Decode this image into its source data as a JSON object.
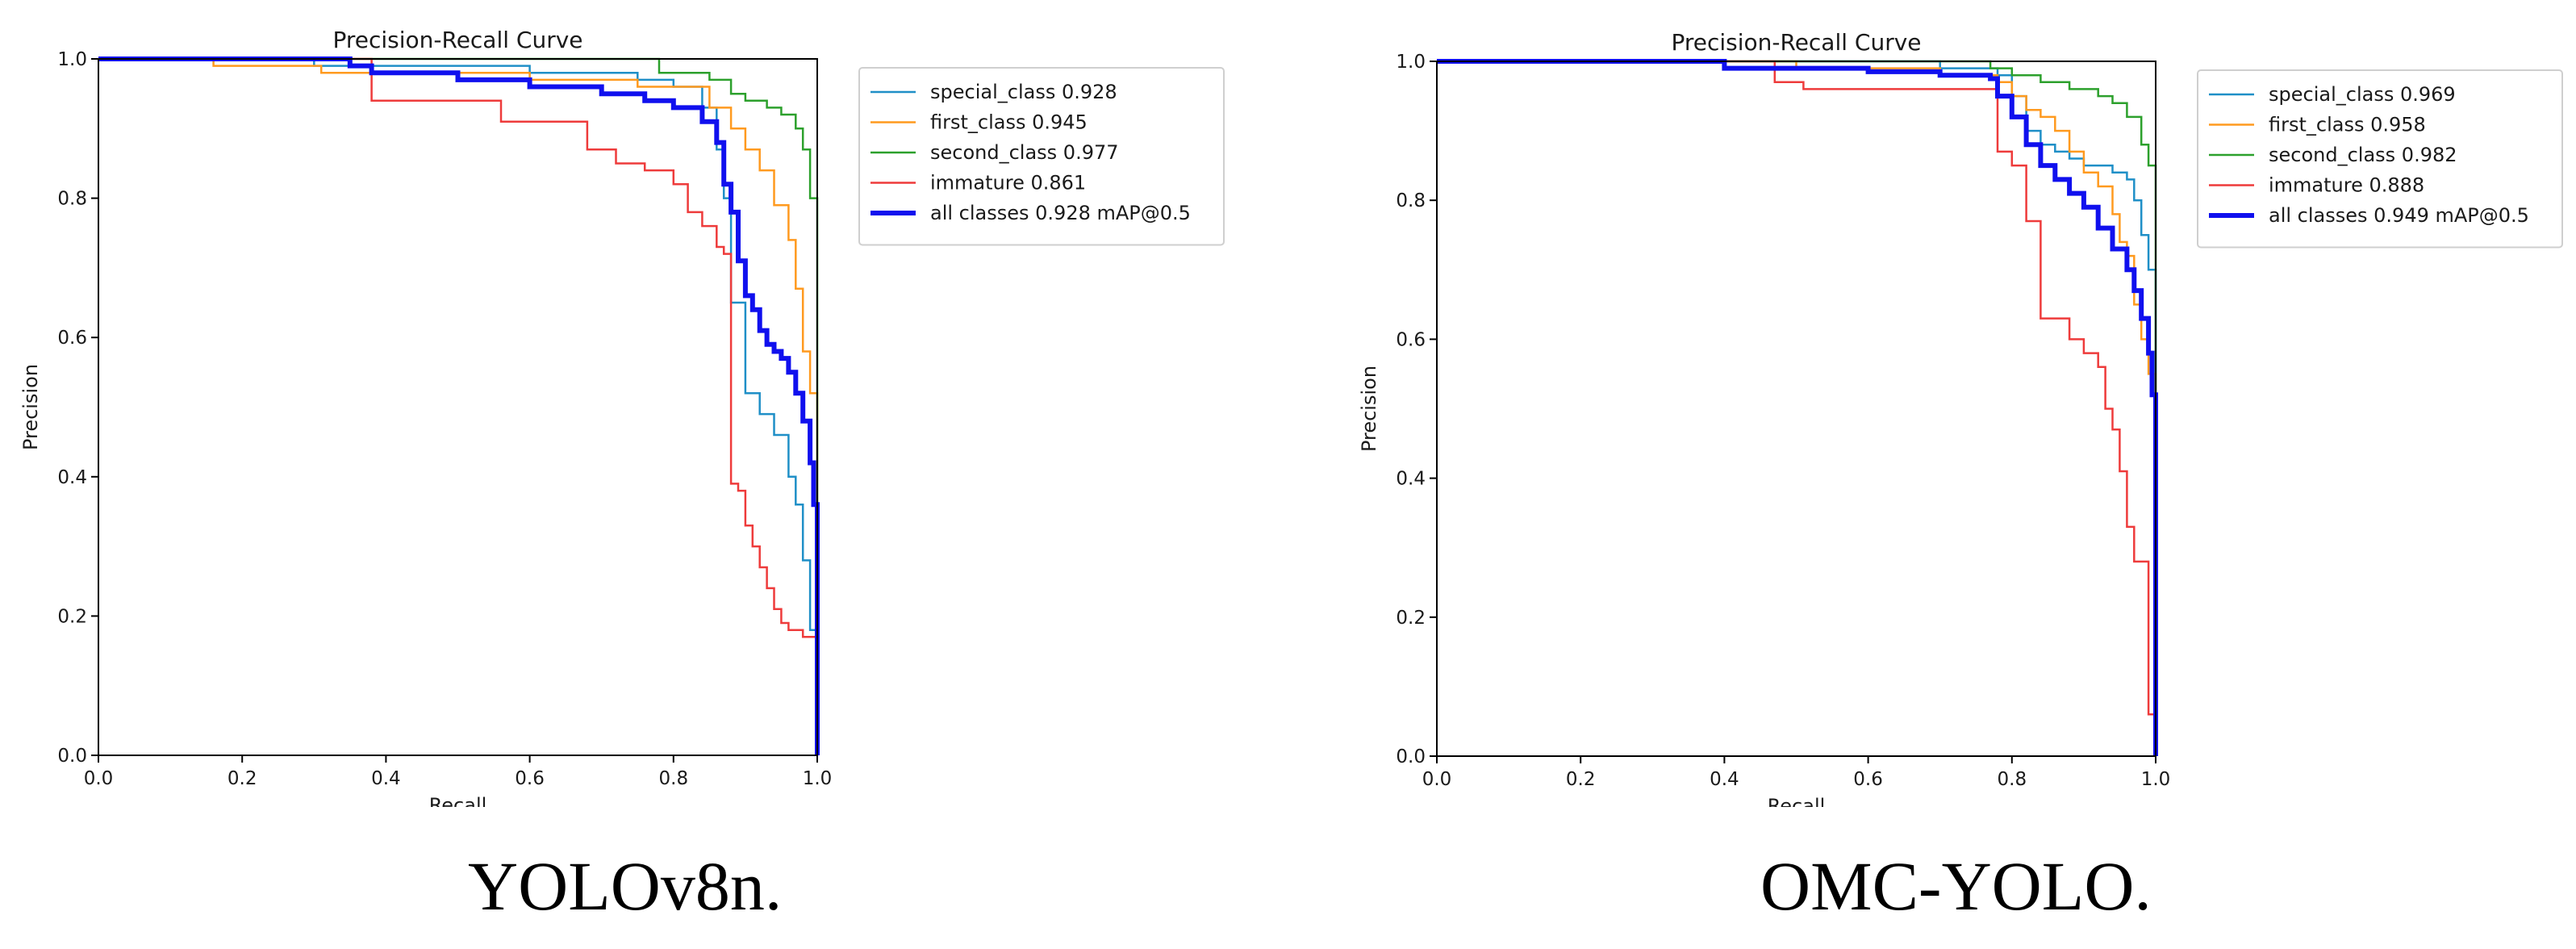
{
  "captions": {
    "left": "YOLOv8n.",
    "right": "OMC-YOLO."
  },
  "chart_data": [
    {
      "type": "line",
      "title": "Precision-Recall Curve",
      "xlabel": "Recall",
      "ylabel": "Precision",
      "xlim": [
        0,
        1
      ],
      "ylim": [
        0,
        1
      ],
      "xticks": [
        "0.0",
        "0.2",
        "0.4",
        "0.6",
        "0.8",
        "1.0"
      ],
      "yticks": [
        "0.0",
        "0.2",
        "0.4",
        "0.6",
        "0.8",
        "1.0"
      ],
      "grid": false,
      "legend_position": "outside-right",
      "series": [
        {
          "name": "special_class 0.928",
          "color": "#1f8fc7",
          "width": 2.5,
          "x": [
            0,
            0.3,
            0.6,
            0.75,
            0.8,
            0.84,
            0.86,
            0.87,
            0.88,
            0.88,
            0.9,
            0.9,
            0.92,
            0.94,
            0.96,
            0.97,
            0.98,
            0.99,
            1.0,
            1.0
          ],
          "y": [
            1.0,
            0.99,
            0.98,
            0.97,
            0.96,
            0.93,
            0.87,
            0.8,
            0.72,
            0.65,
            0.6,
            0.52,
            0.49,
            0.46,
            0.4,
            0.36,
            0.28,
            0.18,
            0.1,
            0.0
          ]
        },
        {
          "name": "first_class 0.945",
          "color": "#ff9a1f",
          "width": 2.5,
          "x": [
            0,
            0.15,
            0.16,
            0.3,
            0.31,
            0.6,
            0.75,
            0.85,
            0.88,
            0.9,
            0.92,
            0.94,
            0.96,
            0.97,
            0.98,
            0.99,
            1.0,
            1.0
          ],
          "y": [
            1.0,
            1.0,
            0.99,
            0.99,
            0.98,
            0.97,
            0.96,
            0.93,
            0.9,
            0.87,
            0.84,
            0.79,
            0.74,
            0.67,
            0.58,
            0.52,
            0.4,
            0.0
          ]
        },
        {
          "name": "second_class 0.977",
          "color": "#2ca02c",
          "width": 2.5,
          "x": [
            0,
            0.6,
            0.77,
            0.78,
            0.85,
            0.88,
            0.9,
            0.93,
            0.95,
            0.97,
            0.98,
            0.99,
            1.0,
            1.0
          ],
          "y": [
            1.0,
            1.0,
            1.0,
            0.98,
            0.97,
            0.95,
            0.94,
            0.93,
            0.92,
            0.9,
            0.87,
            0.8,
            0.62,
            0.0
          ]
        },
        {
          "name": "immature 0.861",
          "color": "#ee3b3b",
          "width": 2.5,
          "x": [
            0,
            0.37,
            0.38,
            0.55,
            0.56,
            0.66,
            0.68,
            0.72,
            0.76,
            0.8,
            0.82,
            0.84,
            0.86,
            0.87,
            0.88,
            0.88,
            0.89,
            0.9,
            0.91,
            0.92,
            0.93,
            0.94,
            0.95,
            0.96,
            0.97,
            0.98,
            0.99,
            1.0,
            1.0
          ],
          "y": [
            1.0,
            1.0,
            0.94,
            0.94,
            0.91,
            0.91,
            0.87,
            0.85,
            0.84,
            0.82,
            0.78,
            0.76,
            0.73,
            0.72,
            0.55,
            0.39,
            0.38,
            0.33,
            0.3,
            0.27,
            0.24,
            0.21,
            0.19,
            0.18,
            0.18,
            0.17,
            0.17,
            0.1,
            0.0
          ]
        },
        {
          "name": "all classes 0.928 mAP@0.5",
          "color": "#1010ee",
          "width": 6,
          "x": [
            0,
            0.35,
            0.38,
            0.5,
            0.6,
            0.7,
            0.76,
            0.8,
            0.84,
            0.86,
            0.87,
            0.88,
            0.89,
            0.9,
            0.91,
            0.92,
            0.93,
            0.94,
            0.95,
            0.96,
            0.97,
            0.98,
            0.99,
            0.995,
            1.0,
            1.0
          ],
          "y": [
            1.0,
            0.99,
            0.98,
            0.97,
            0.96,
            0.95,
            0.94,
            0.93,
            0.91,
            0.88,
            0.82,
            0.78,
            0.71,
            0.66,
            0.64,
            0.61,
            0.59,
            0.58,
            0.57,
            0.55,
            0.52,
            0.48,
            0.42,
            0.36,
            0.25,
            0.0
          ]
        }
      ]
    },
    {
      "type": "line",
      "title": "Precision-Recall Curve",
      "xlabel": "Recall",
      "ylabel": "Precision",
      "xlim": [
        0,
        1
      ],
      "ylim": [
        0,
        1
      ],
      "xticks": [
        "0.0",
        "0.2",
        "0.4",
        "0.6",
        "0.8",
        "1.0"
      ],
      "yticks": [
        "0.0",
        "0.2",
        "0.4",
        "0.6",
        "0.8",
        "1.0"
      ],
      "grid": false,
      "legend_position": "outside-right",
      "series": [
        {
          "name": "special_class 0.969",
          "color": "#1f8fc7",
          "width": 2.5,
          "x": [
            0,
            0.7,
            0.78,
            0.8,
            0.82,
            0.84,
            0.86,
            0.88,
            0.9,
            0.92,
            0.94,
            0.96,
            0.97,
            0.98,
            0.99,
            1.0,
            1.0
          ],
          "y": [
            1.0,
            0.99,
            0.98,
            0.95,
            0.9,
            0.88,
            0.87,
            0.86,
            0.85,
            0.85,
            0.84,
            0.83,
            0.8,
            0.75,
            0.7,
            0.6,
            0.0
          ]
        },
        {
          "name": "first_class 0.958",
          "color": "#ff9a1f",
          "width": 2.5,
          "x": [
            0,
            0.5,
            0.7,
            0.78,
            0.8,
            0.82,
            0.84,
            0.86,
            0.88,
            0.9,
            0.92,
            0.94,
            0.95,
            0.96,
            0.97,
            0.98,
            0.99,
            1.0,
            1.0
          ],
          "y": [
            1.0,
            0.99,
            0.98,
            0.97,
            0.95,
            0.93,
            0.92,
            0.9,
            0.87,
            0.84,
            0.82,
            0.78,
            0.74,
            0.72,
            0.65,
            0.6,
            0.55,
            0.5,
            0.0
          ]
        },
        {
          "name": "second_class 0.982",
          "color": "#2ca02c",
          "width": 2.5,
          "x": [
            0,
            0.7,
            0.77,
            0.8,
            0.84,
            0.88,
            0.92,
            0.94,
            0.96,
            0.98,
            0.99,
            1.0,
            1.0
          ],
          "y": [
            1.0,
            1.0,
            0.99,
            0.98,
            0.97,
            0.96,
            0.95,
            0.94,
            0.92,
            0.88,
            0.85,
            0.7,
            0.0
          ]
        },
        {
          "name": "immature 0.888",
          "color": "#ee3b3b",
          "width": 2.5,
          "x": [
            0,
            0.46,
            0.47,
            0.5,
            0.51,
            0.77,
            0.78,
            0.8,
            0.82,
            0.84,
            0.84,
            0.88,
            0.9,
            0.92,
            0.93,
            0.94,
            0.95,
            0.96,
            0.97,
            0.98,
            0.99,
            0.99,
            1.0,
            1.0
          ],
          "y": [
            1.0,
            1.0,
            0.97,
            0.97,
            0.96,
            0.96,
            0.87,
            0.85,
            0.77,
            0.73,
            0.63,
            0.6,
            0.58,
            0.56,
            0.5,
            0.47,
            0.41,
            0.33,
            0.28,
            0.28,
            0.28,
            0.06,
            0.02,
            0.0
          ]
        },
        {
          "name": "all classes 0.949 mAP@0.5",
          "color": "#1010ee",
          "width": 6,
          "x": [
            0,
            0.4,
            0.6,
            0.7,
            0.77,
            0.78,
            0.8,
            0.82,
            0.84,
            0.86,
            0.88,
            0.9,
            0.92,
            0.94,
            0.96,
            0.97,
            0.98,
            0.99,
            0.995,
            1.0,
            1.0
          ],
          "y": [
            1.0,
            0.99,
            0.985,
            0.98,
            0.975,
            0.95,
            0.92,
            0.88,
            0.85,
            0.83,
            0.81,
            0.79,
            0.76,
            0.73,
            0.7,
            0.67,
            0.63,
            0.58,
            0.52,
            0.46,
            0.0
          ]
        }
      ]
    }
  ]
}
